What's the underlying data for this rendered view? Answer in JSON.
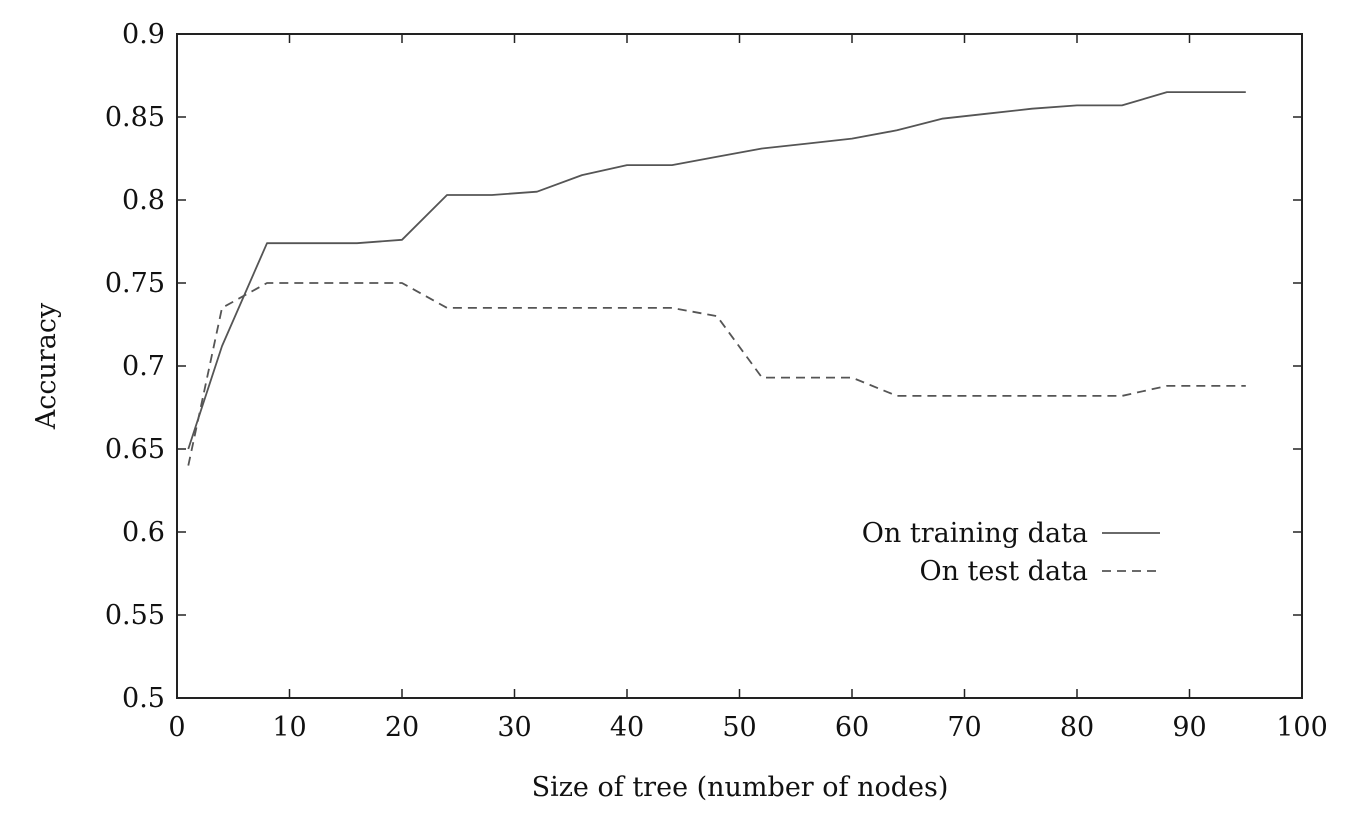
{
  "chart_data": {
    "type": "line",
    "title": "",
    "xlabel": "Size of tree (number of nodes)",
    "ylabel": "Accuracy",
    "xlim": [
      0,
      100
    ],
    "ylim": [
      0.5,
      0.9
    ],
    "x_ticks": [
      0,
      10,
      20,
      30,
      40,
      50,
      60,
      70,
      80,
      90,
      100
    ],
    "y_ticks": [
      0.5,
      0.55,
      0.6,
      0.65,
      0.7,
      0.75,
      0.8,
      0.85,
      0.9
    ],
    "x_tick_labels": [
      "0",
      "10",
      "20",
      "30",
      "40",
      "50",
      "60",
      "70",
      "80",
      "90",
      "100"
    ],
    "y_tick_labels": [
      "0.5",
      "0.55",
      "0.6",
      "0.65",
      "0.7",
      "0.75",
      "0.8",
      "0.85",
      "0.9"
    ],
    "grid": false,
    "legend_position": "center-right",
    "series": [
      {
        "name": "On training data",
        "style": "solid",
        "color": "#555555",
        "x": [
          1,
          4,
          8,
          12,
          16,
          20,
          24,
          28,
          32,
          36,
          40,
          44,
          48,
          52,
          56,
          60,
          64,
          68,
          72,
          76,
          80,
          84,
          88,
          92,
          95
        ],
        "y": [
          0.65,
          0.712,
          0.774,
          0.774,
          0.774,
          0.776,
          0.803,
          0.803,
          0.805,
          0.815,
          0.821,
          0.821,
          0.826,
          0.831,
          0.834,
          0.837,
          0.842,
          0.849,
          0.852,
          0.855,
          0.857,
          0.857,
          0.865,
          0.865,
          0.865
        ]
      },
      {
        "name": "On test data",
        "style": "dashed",
        "color": "#555555",
        "x": [
          1,
          4,
          8,
          12,
          16,
          20,
          24,
          28,
          32,
          36,
          40,
          44,
          48,
          52,
          56,
          60,
          64,
          68,
          72,
          76,
          80,
          84,
          88,
          92,
          95
        ],
        "y": [
          0.64,
          0.735,
          0.75,
          0.75,
          0.75,
          0.75,
          0.735,
          0.735,
          0.735,
          0.735,
          0.735,
          0.735,
          0.73,
          0.693,
          0.693,
          0.693,
          0.682,
          0.682,
          0.682,
          0.682,
          0.682,
          0.682,
          0.688,
          0.688,
          0.688
        ]
      }
    ]
  }
}
